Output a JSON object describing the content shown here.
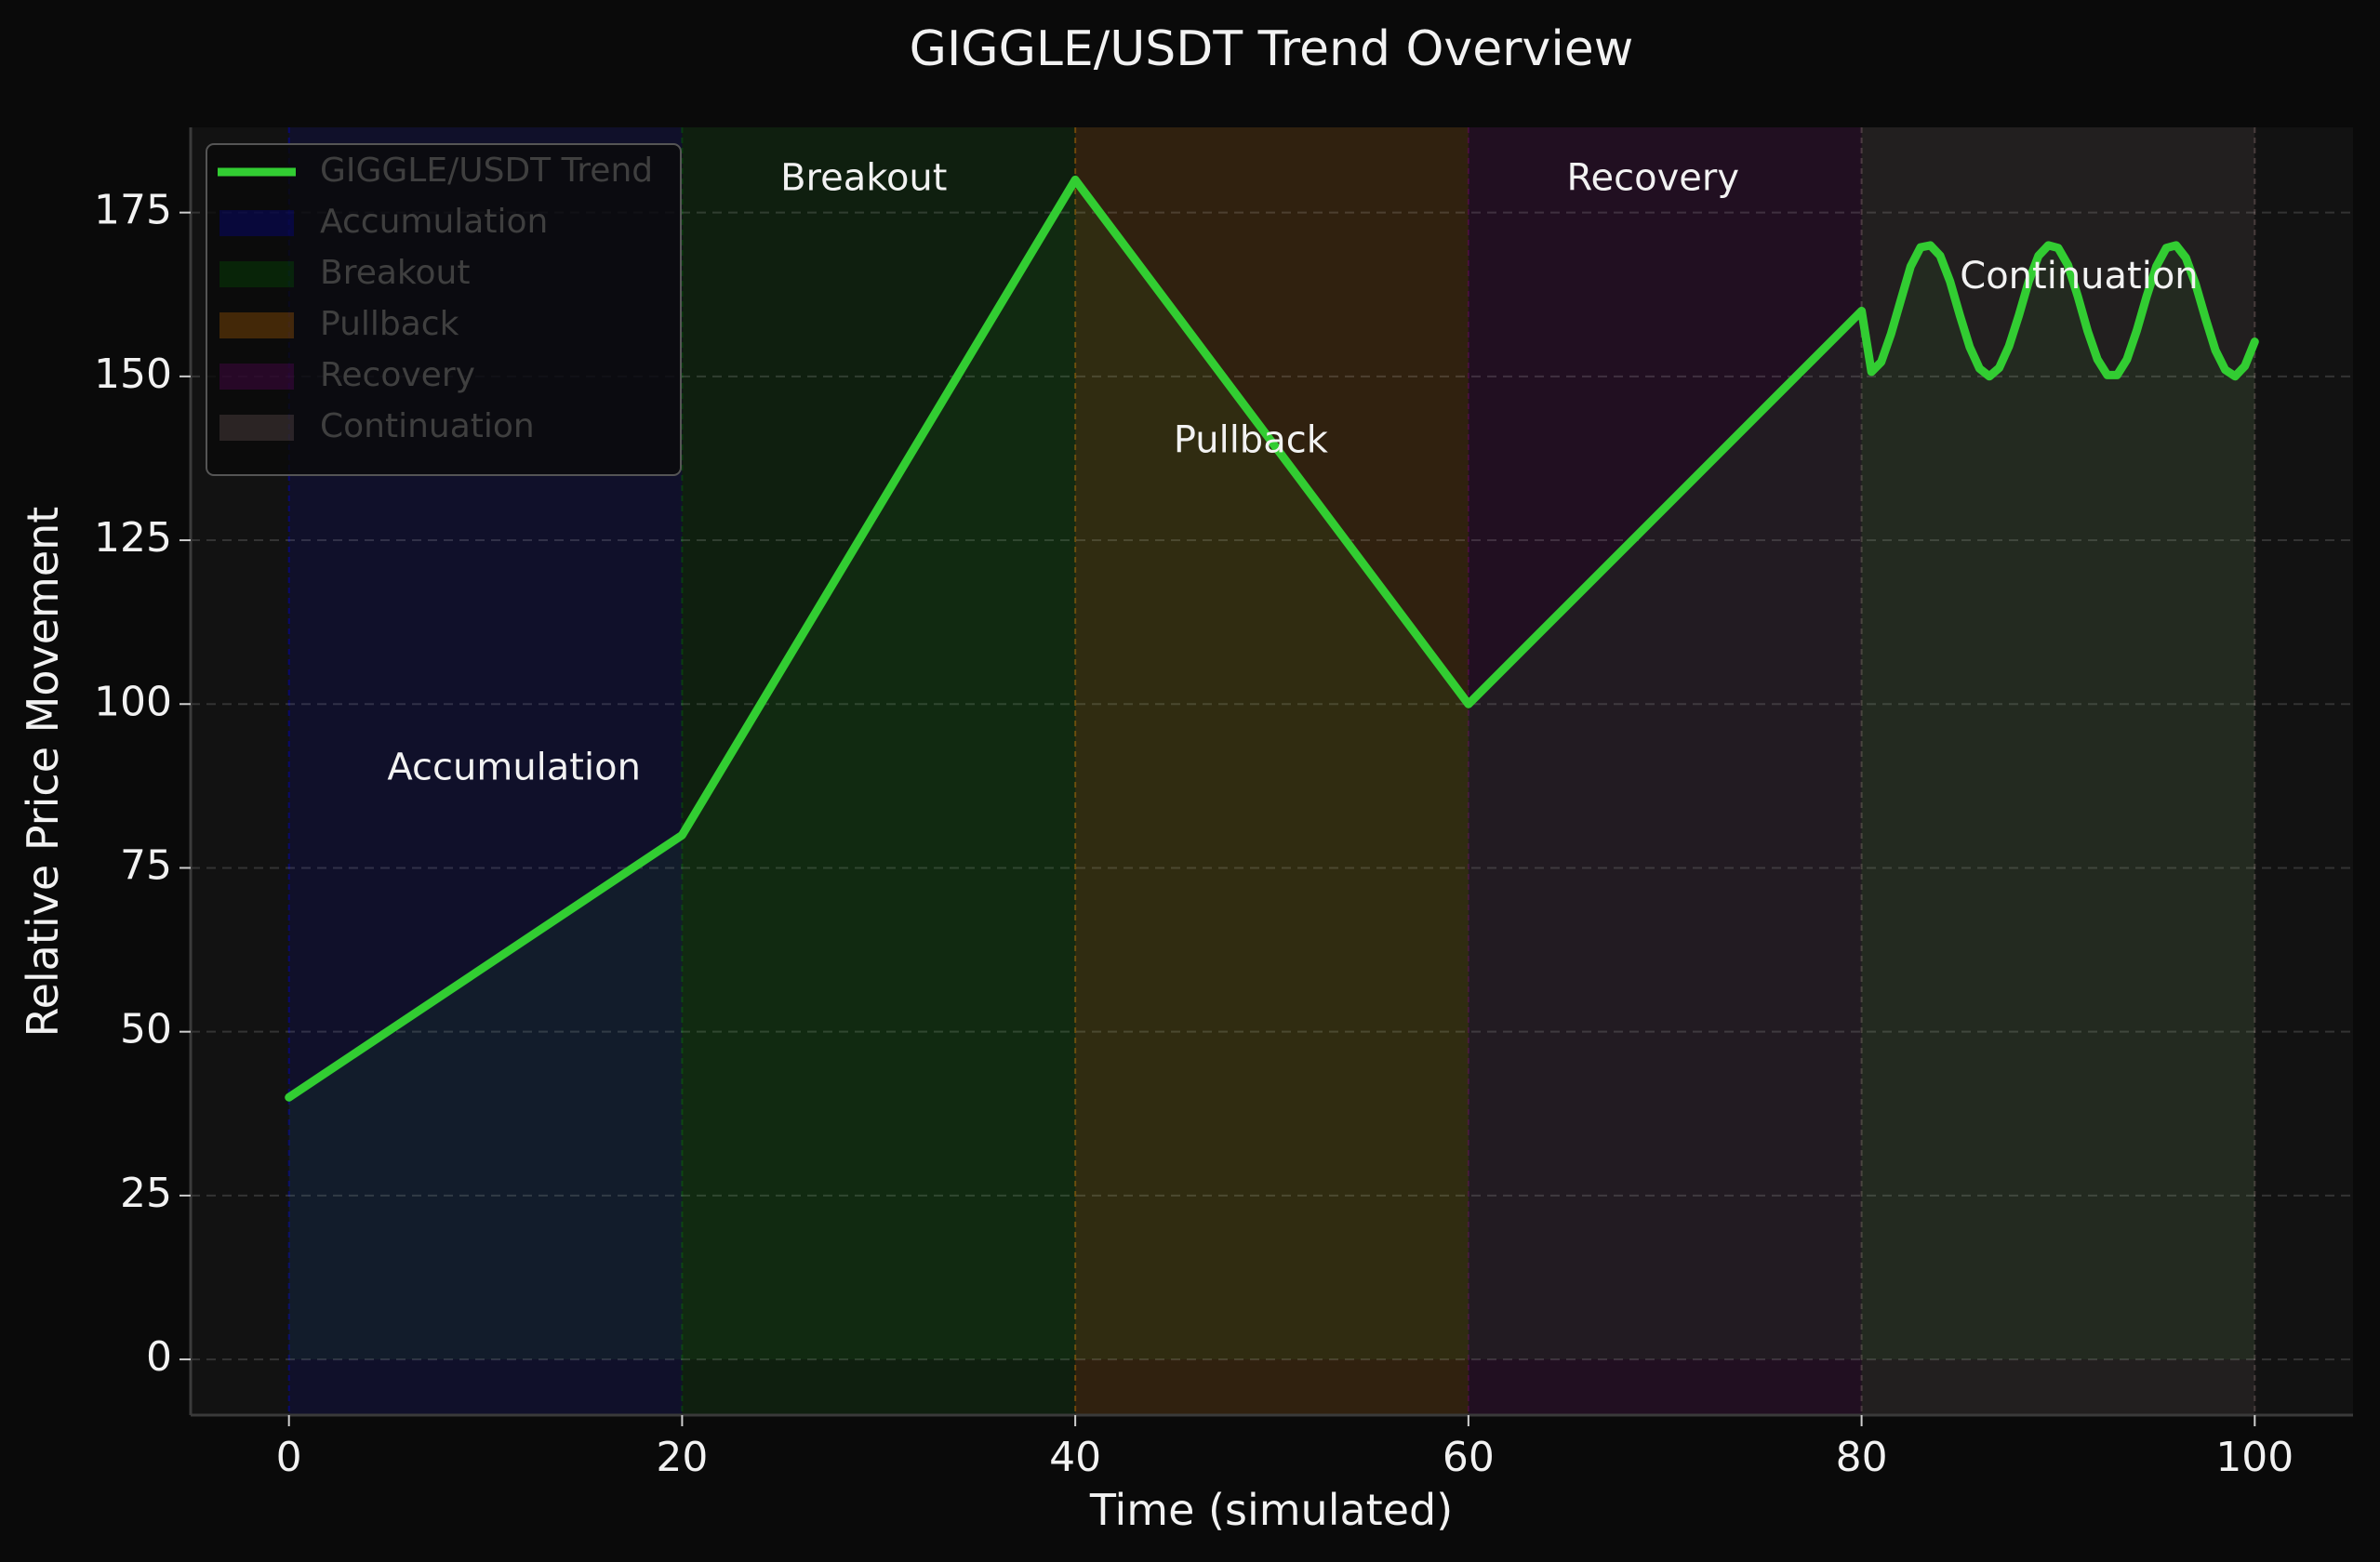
{
  "chart_data": {
    "type": "line",
    "title": "GIGGLE/USDT Trend Overview",
    "xlabel": "Time (simulated)",
    "ylabel": "Relative Price Movement",
    "xlim": [
      -5,
      105
    ],
    "ylim": [
      -8.5,
      188
    ],
    "xticks": [
      0,
      20,
      40,
      60,
      80,
      100
    ],
    "yticks": [
      0,
      25,
      50,
      75,
      100,
      125,
      150,
      175
    ],
    "grid": "horizontal dashed",
    "legend_position": "upper-left",
    "series": [
      {
        "name": "GIGGLE/USDT Trend",
        "color": "#32cd32",
        "fill": true,
        "points": [
          [
            0,
            40
          ],
          [
            20,
            80
          ],
          [
            40,
            180
          ],
          [
            60,
            100
          ],
          [
            80,
            160
          ],
          [
            80.5,
            150.7
          ],
          [
            81,
            152.2
          ],
          [
            81.5,
            156.5
          ],
          [
            82,
            161.7
          ],
          [
            82.5,
            166.8
          ],
          [
            83,
            169.7
          ],
          [
            83.5,
            170.0
          ],
          [
            84,
            168.4
          ],
          [
            84.5,
            164.5
          ],
          [
            85,
            159.3
          ],
          [
            85.5,
            154.5
          ],
          [
            86,
            151.2
          ],
          [
            86.5,
            150.0
          ],
          [
            87,
            151.3
          ],
          [
            87.5,
            154.6
          ],
          [
            88,
            159.3
          ],
          [
            88.5,
            164.5
          ],
          [
            89,
            168.4
          ],
          [
            89.5,
            170.0
          ],
          [
            90,
            169.6
          ],
          [
            90.5,
            167.0
          ],
          [
            91,
            162.2
          ],
          [
            91.5,
            156.9
          ],
          [
            92,
            152.6
          ],
          [
            92.5,
            150.2
          ],
          [
            93,
            150.2
          ],
          [
            93.5,
            152.6
          ],
          [
            94,
            157.0
          ],
          [
            94.5,
            162.2
          ],
          [
            95,
            166.8
          ],
          [
            95.5,
            169.6
          ],
          [
            96,
            170.0
          ],
          [
            96.5,
            168.1
          ],
          [
            97,
            164.0
          ],
          [
            97.5,
            158.8
          ],
          [
            98,
            154.0
          ],
          [
            98.5,
            151.0
          ],
          [
            99,
            150.0
          ],
          [
            99.5,
            151.6
          ],
          [
            100,
            155.3
          ]
        ]
      }
    ],
    "phases": [
      {
        "name": "Accumulation",
        "start": 0,
        "end": 20,
        "color": "#0000ff",
        "opacity": 0.1,
        "label_x": 5,
        "label_y": 90
      },
      {
        "name": "Breakout",
        "start": 20,
        "end": 40,
        "color": "#008000",
        "opacity": 0.12,
        "label_x": 25,
        "label_y": 180
      },
      {
        "name": "Pullback",
        "start": 40,
        "end": 60,
        "color": "#ff8c00",
        "opacity": 0.13,
        "label_x": 45,
        "label_y": 140
      },
      {
        "name": "Recovery",
        "start": 60,
        "end": 80,
        "color": "#800080",
        "opacity": 0.14,
        "label_x": 65,
        "label_y": 180
      },
      {
        "name": "Continuation",
        "start": 80,
        "end": 100,
        "color": "#9e8080",
        "opacity": 0.12,
        "label_x": 85,
        "label_y": 165
      }
    ],
    "legend": [
      "GIGGLE/USDT Trend",
      "Accumulation",
      "Breakout",
      "Pullback",
      "Recovery",
      "Continuation"
    ]
  }
}
